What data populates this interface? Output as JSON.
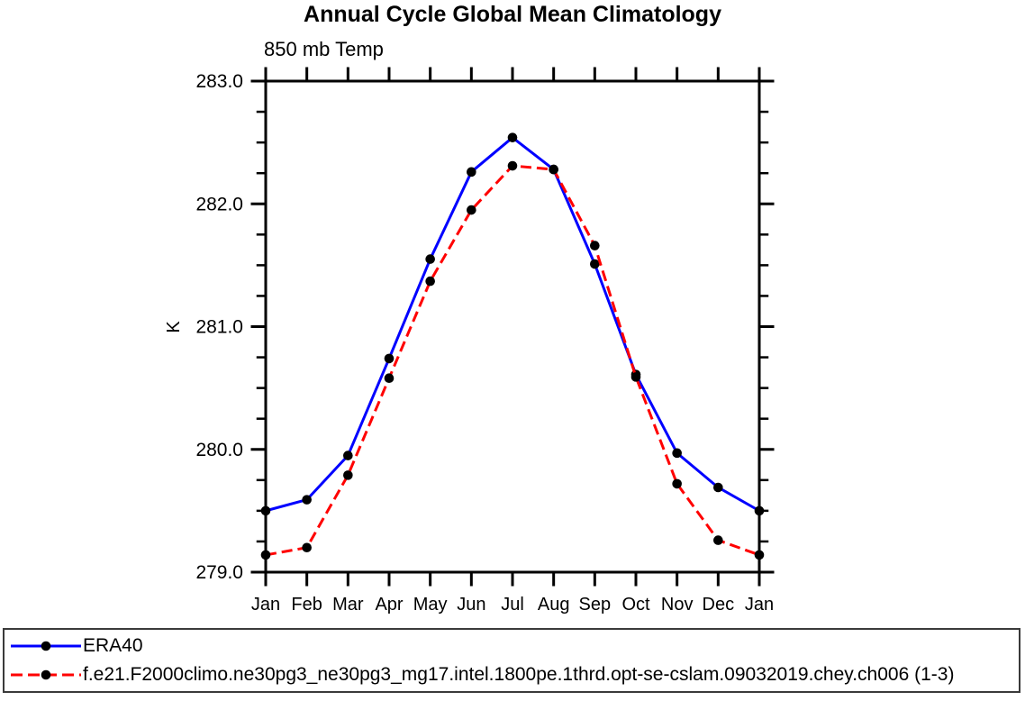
{
  "page": {
    "background": "#ffffff"
  },
  "chart_data": {
    "type": "line",
    "title": "Annual Cycle Global Mean Climatology",
    "subtitle": "850 mb Temp",
    "ylabel": "K",
    "xlabel": "",
    "categories": [
      "Jan",
      "Feb",
      "Mar",
      "Apr",
      "May",
      "Jun",
      "Jul",
      "Aug",
      "Sep",
      "Oct",
      "Nov",
      "Dec",
      "Jan"
    ],
    "ylim": [
      279.0,
      283.0
    ],
    "yticks": [
      283.0,
      282.0,
      281.0,
      280.0,
      279.0
    ],
    "y_minor_step": 0.25,
    "grid": false,
    "legend_position": "bottom-left-box",
    "axis_color": "#000000",
    "marker": {
      "shape": "circle",
      "color": "#000000"
    },
    "series": [
      {
        "name": "ERA40",
        "color": "#0000ff",
        "line_style": "solid",
        "values": [
          279.5,
          279.59,
          279.95,
          280.74,
          281.55,
          282.26,
          282.54,
          282.28,
          281.51,
          280.61,
          279.97,
          279.69,
          279.5
        ]
      },
      {
        "name": "f.e21.F2000climo.ne30pg3_ne30pg3_mg17.intel.1800pe.1thrd.opt-se-cslam.09032019.chey.ch006 (1-3)",
        "color": "#ff0000",
        "line_style": "dashed",
        "values": [
          279.14,
          279.2,
          279.79,
          280.58,
          281.37,
          281.95,
          282.31,
          282.28,
          281.66,
          280.59,
          279.72,
          279.26,
          279.14
        ]
      }
    ]
  }
}
